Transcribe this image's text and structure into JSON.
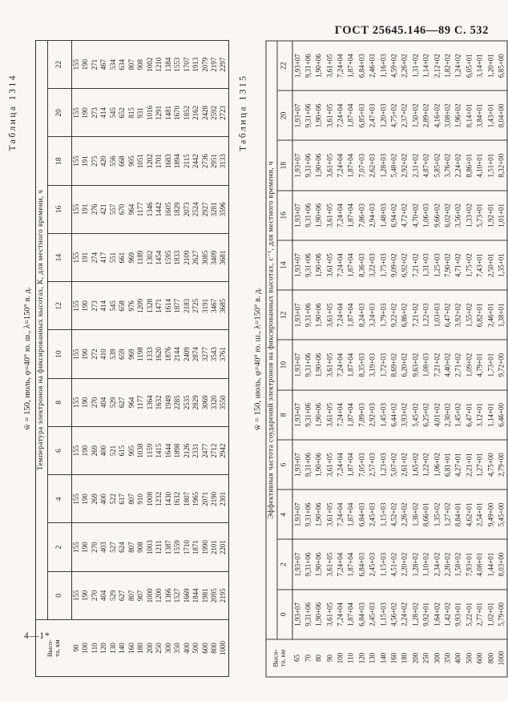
{
  "page": {
    "header": "ГОСТ 25645.146—89  С. 532",
    "footer_mark": "4—1*"
  },
  "tables": [
    {
      "caption": "Таблица 1314",
      "subtitle": "w̄ = 150, июль, φ=40° ю. ш., λ=150° в. д.",
      "title": "Температура электронов на фиксированных высотах, К, для местного времени, ч",
      "row_header": "Высо-\nта, км",
      "time_labels": [
        "0",
        "2",
        "4",
        "6",
        "8",
        "10",
        "12",
        "14",
        "16",
        "18",
        "20",
        "22"
      ],
      "rows": [
        [
          "90",
          "155",
          "155",
          "155",
          "155",
          "155",
          "155",
          "155",
          "155",
          "155",
          "155",
          "155",
          "155"
        ],
        [
          "100",
          "190",
          "190",
          "190",
          "190",
          "190",
          "190",
          "190",
          "191",
          "191",
          "191",
          "190",
          "190"
        ],
        [
          "110",
          "270",
          "270",
          "269",
          "269",
          "270",
          "272",
          "273",
          "274",
          "276",
          "275",
          "273",
          "271"
        ],
        [
          "120",
          "404",
          "403",
          "400",
          "400",
          "404",
          "410",
          "414",
          "417",
          "421",
          "420",
          "414",
          "467"
        ],
        [
          "130",
          "529",
          "527",
          "522",
          "521",
          "529",
          "539",
          "545",
          "551",
          "557",
          "556",
          "545",
          "534"
        ],
        [
          "140",
          "627",
          "624",
          "617",
          "615",
          "627",
          "659",
          "658",
          "661",
          "670",
          "668",
          "652",
          "634"
        ],
        [
          "160",
          "807",
          "807",
          "807",
          "905",
          "964",
          "969",
          "976",
          "969",
          "964",
          "905",
          "815",
          "807"
        ],
        [
          "180",
          "907",
          "908",
          "910",
          "1038",
          "1177",
          "1198",
          "1209",
          "1189",
          "1177",
          "1051",
          "931",
          "908"
        ],
        [
          "200",
          "1000",
          "1003",
          "1008",
          "1159",
          "1364",
          "1333",
          "1328",
          "1302",
          "1346",
          "1202",
          "1016",
          "1002"
        ],
        [
          "250",
          "1200",
          "1211",
          "1232",
          "1415",
          "1632",
          "1620",
          "1471",
          "1454",
          "1442",
          "1701",
          "1291",
          "1210"
        ],
        [
          "300",
          "1366",
          "1387",
          "1430",
          "1644",
          "1949",
          "1876",
          "1614",
          "1595",
          "1605",
          "1683",
          "1481",
          "1384"
        ],
        [
          "350",
          "1527",
          "1559",
          "1632",
          "1898",
          "2285",
          "2144",
          "1877",
          "1833",
          "1829",
          "1894",
          "1670",
          "1553"
        ],
        [
          "400",
          "1669",
          "1710",
          "1807",
          "2126",
          "2535",
          "2409",
          "2183",
          "2109",
          "2073",
          "2115",
          "1852",
          "1707"
        ],
        [
          "500",
          "1844",
          "1871",
          "1965",
          "2331",
          "2829",
          "2874",
          "2725",
          "2627",
          "2524",
          "2442",
          "2162",
          "1913"
        ],
        [
          "600",
          "1981",
          "1990",
          "2071",
          "2477",
          "3069",
          "3277",
          "3191",
          "3085",
          "2927",
          "2736",
          "2428",
          "2079"
        ],
        [
          "800",
          "2095",
          "2101",
          "2190",
          "2712",
          "3320",
          "3543",
          "3467",
          "3409",
          "3281",
          "2951",
          "2592",
          "2197"
        ],
        [
          "1000",
          "2195",
          "2201",
          "2301",
          "2942",
          "3550",
          "3761",
          "3685",
          "3681",
          "3596",
          "3133",
          "2723",
          "2297"
        ]
      ]
    },
    {
      "caption": "Таблица 1315",
      "subtitle": "w̄ = 150, июль, φ=40° ю. ш., λ=150° в. д.",
      "title": "Эффективная частота соударений электронов на фиксированных высотах, с⁻¹, для местного времени, ч",
      "row_header": "Высо-\nта, км",
      "time_labels": [
        "0",
        "2",
        "4",
        "6",
        "8",
        "10",
        "12",
        "14",
        "16",
        "18",
        "20",
        "22"
      ],
      "rows": [
        [
          "65",
          "1,93+07",
          "1,93+07",
          "1,93+07",
          "1,93+07",
          "1,93+07",
          "1,93+07",
          "1,93+07",
          "1,93+07",
          "1,93+07",
          "1,93+07",
          "1,93+07",
          "1,93+07"
        ],
        [
          "70",
          "9,31+06",
          "9,31+06",
          "9,31+06",
          "9,31+06",
          "9,31+06",
          "9,31+06",
          "9,31+06",
          "9,31+06",
          "9,31+06",
          "9,31+06",
          "9,31+06",
          "9,31+06"
        ],
        [
          "80",
          "1,90+06",
          "1,90+06",
          "1,90+06",
          "1,90+06",
          "1,90+06",
          "1,90+06",
          "1,90+06",
          "1,90+06",
          "1,90+06",
          "1,90+06",
          "1,90+06",
          "1,90+06"
        ],
        [
          "90",
          "3,61+05",
          "3,61+05",
          "3,61+05",
          "3,61+05",
          "3,61+05",
          "3,61+05",
          "3,61+05",
          "3,61+05",
          "3,61+05",
          "3,61+05",
          "3,61+05",
          "3,61+05"
        ],
        [
          "100",
          "7,24+04",
          "7,24+04",
          "7,24+04",
          "7,24+04",
          "7,24+04",
          "7,24+04",
          "7,24+04",
          "7,24+04",
          "7,24+04",
          "7,24+04",
          "7,24+04",
          "7,24+04"
        ],
        [
          "110",
          "1,87+04",
          "1,87+04",
          "1,87+04",
          "1,87+04",
          "1,87+04",
          "1,87+04",
          "1,87+04",
          "1,87+04",
          "1,87+04",
          "1,87+04",
          "1,87+04",
          "1,87+04"
        ],
        [
          "120",
          "6,84+03",
          "6,84+03",
          "6,84+03",
          "7,05+03",
          "7,89+03",
          "8,35+03",
          "8,24+03",
          "8,36+03",
          "7,86+03",
          "7,07+03",
          "6,85+03",
          "6,84+03"
        ],
        [
          "130",
          "2,45+03",
          "2,45+03",
          "2,45+03",
          "2,57+03",
          "2,92+03",
          "3,19+03",
          "3,24+03",
          "3,22+03",
          "2,94+03",
          "2,62+03",
          "2,47+03",
          "2,46+03"
        ],
        [
          "140",
          "1,15+03",
          "1,15+03",
          "1,15+03",
          "1,23+03",
          "1,45+03",
          "1,72+03",
          "1,79+03",
          "1,75+03",
          "1,48+03",
          "1,28+03",
          "1,20+03",
          "1,16+03"
        ],
        [
          "160",
          "4,56+02",
          "4,51+02",
          "4,52+02",
          "5,07+02",
          "6,44+02",
          "8,69+02",
          "9,22+02",
          "9,09+02",
          "6,94+02",
          "5,48+02",
          "4,75+02",
          "4,59+02"
        ],
        [
          "180",
          "2,24+02",
          "2,20+02",
          "2,26+02",
          "2,61+02",
          "3,93+02",
          "6,20+02",
          "6,86+02",
          "6,92+02",
          "4,72+02",
          "2,92+02",
          "2,37+02",
          "2,26+02"
        ],
        [
          "200",
          "1,28+02",
          "1,28+02",
          "1,36+02",
          "1,65+02",
          "5,45+02",
          "9,63+02",
          "7,21+02",
          "7,21+02",
          "4,70+02",
          "2,31+02",
          "1,50+02",
          "1,31+02"
        ],
        [
          "250",
          "9,92+01",
          "1,10+02",
          "8,66+01",
          "1,22+02",
          "6,25+02",
          "1,08+03",
          "1,22+03",
          "1,31+03",
          "1,06+03",
          "4,87+02",
          "2,89+02",
          "1,14+02"
        ],
        [
          "300",
          "1,64+02",
          "2,34+02",
          "1,35+02",
          "1,06+02",
          "4,01+02",
          "7,21+02",
          "1,03+03",
          "1,25+03",
          "9,66+02",
          "5,85+02",
          "4,16+02",
          "2,12+02"
        ],
        [
          "350",
          "1,42+02",
          "2,26+02",
          "1,27+02",
          "6,81+01",
          "2,30+02",
          "4,40+02",
          "6,47+02",
          "7,90+02",
          "6,02+02",
          "3,76+02",
          "3,08+02",
          "1,82+02"
        ],
        [
          "400",
          "9,93+01",
          "1,58+02",
          "8,84+01",
          "4,27+01",
          "1,45+02",
          "2,71+02",
          "3,92+02",
          "4,71+02",
          "3,56+02",
          "2,24+02",
          "1,96+02",
          "1,24+02"
        ],
        [
          "500",
          "5,22+01",
          "7,93+01",
          "4,62+01",
          "2,21+01",
          "6,47+01",
          "1,09+02",
          "1,55+02",
          "1,75+02",
          "1,33+02",
          "8,86+01",
          "8,14+01",
          "6,05+01"
        ],
        [
          "600",
          "2,77+01",
          "4,08+01",
          "2,54+01",
          "1,27+01",
          "3,12+01",
          "4,79+01",
          "6,82+01",
          "7,43+01",
          "5,73+01",
          "4,10+01",
          "3,84+01",
          "3,14+01"
        ],
        [
          "800",
          "1,02+01",
          "1,44+01",
          "9,49+00",
          "4,75+00",
          "1,14+01",
          "1,73+01",
          "2,46+01",
          "2,50+01",
          "1,92+01",
          "1,51+01",
          "1,43+01",
          "1,20+01"
        ],
        [
          "1000",
          "5,79+00",
          "8,03+00",
          "5,45+00",
          "2,79+00",
          "6,46+00",
          "9,72+00",
          "1,38+01",
          "1,35+01",
          "1,01+01",
          "8,32+00",
          "8,04+00",
          "6,85+00"
        ]
      ]
    }
  ]
}
